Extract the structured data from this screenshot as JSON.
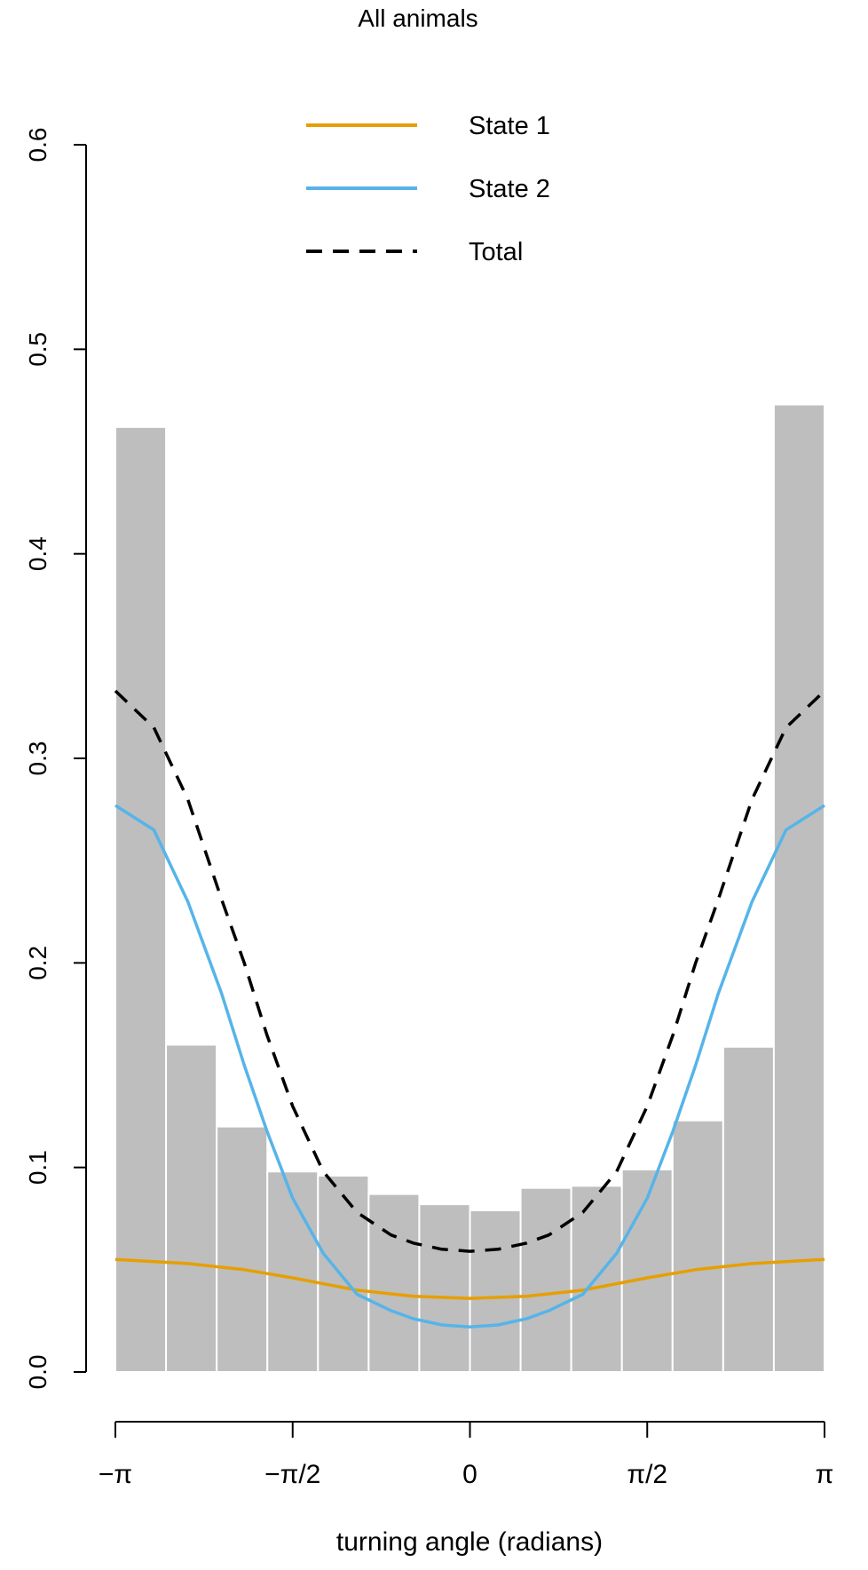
{
  "chart_data": {
    "type": "bar",
    "title": "All animals",
    "xlabel": "turning angle (radians)",
    "ylabel": "",
    "xlim": [
      -3.14159,
      3.14159
    ],
    "ylim": [
      0,
      0.6
    ],
    "yticks": [
      0.0,
      0.1,
      0.2,
      0.3,
      0.4,
      0.5,
      0.6
    ],
    "ytick_labels": [
      "0.0",
      "0.1",
      "0.2",
      "0.3",
      "0.4",
      "0.5",
      "0.6"
    ],
    "xticks": [
      -3.14159,
      -1.5708,
      0,
      1.5708,
      3.14159
    ],
    "xtick_labels": [
      "−π",
      "−π/2",
      "0",
      "π/2",
      "π"
    ],
    "grid": false,
    "legend_position": "top-center",
    "histogram": {
      "bin_edges": [
        -3.14159,
        -2.6928,
        -2.244,
        -1.7952,
        -1.3464,
        -0.8976,
        -0.4488,
        0,
        0.4488,
        0.8976,
        1.3464,
        1.7952,
        2.244,
        2.6928,
        3.14159
      ],
      "values": [
        0.462,
        0.16,
        0.12,
        0.098,
        0.096,
        0.087,
        0.082,
        0.079,
        0.09,
        0.091,
        0.099,
        0.123,
        0.159,
        0.473
      ],
      "color": "#bebebe"
    },
    "series": [
      {
        "name": "State 1",
        "color": "#e69f00",
        "style": "solid",
        "x": [
          -3.14159,
          -2.5,
          -2.0,
          -1.5708,
          -1.0,
          -0.5,
          0,
          0.5,
          1.0,
          1.5708,
          2.0,
          2.5,
          3.14159
        ],
        "values": [
          0.055,
          0.053,
          0.05,
          0.046,
          0.04,
          0.037,
          0.036,
          0.037,
          0.04,
          0.046,
          0.05,
          0.053,
          0.055
        ]
      },
      {
        "name": "State 2",
        "color": "#56b4e9",
        "style": "solid",
        "x": [
          -3.14159,
          -2.8,
          -2.5,
          -2.2,
          -2.0,
          -1.8,
          -1.5708,
          -1.3,
          -1.0,
          -0.7,
          -0.5,
          -0.25,
          0,
          0.25,
          0.5,
          0.7,
          1.0,
          1.3,
          1.5708,
          1.8,
          2.0,
          2.2,
          2.5,
          2.8,
          3.14159
        ],
        "values": [
          0.277,
          0.265,
          0.23,
          0.185,
          0.15,
          0.118,
          0.085,
          0.058,
          0.038,
          0.03,
          0.026,
          0.023,
          0.022,
          0.023,
          0.026,
          0.03,
          0.038,
          0.058,
          0.085,
          0.118,
          0.15,
          0.185,
          0.23,
          0.265,
          0.277
        ]
      },
      {
        "name": "Total",
        "color": "#000000",
        "style": "dashed",
        "x": [
          -3.14159,
          -2.8,
          -2.5,
          -2.2,
          -2.0,
          -1.8,
          -1.5708,
          -1.3,
          -1.0,
          -0.7,
          -0.5,
          -0.25,
          0,
          0.25,
          0.5,
          0.7,
          1.0,
          1.3,
          1.5708,
          1.8,
          2.0,
          2.2,
          2.5,
          2.8,
          3.14159
        ],
        "values": [
          0.333,
          0.315,
          0.28,
          0.231,
          0.2,
          0.165,
          0.13,
          0.098,
          0.078,
          0.067,
          0.063,
          0.06,
          0.059,
          0.06,
          0.063,
          0.067,
          0.078,
          0.098,
          0.13,
          0.165,
          0.2,
          0.231,
          0.28,
          0.315,
          0.333
        ]
      }
    ]
  }
}
